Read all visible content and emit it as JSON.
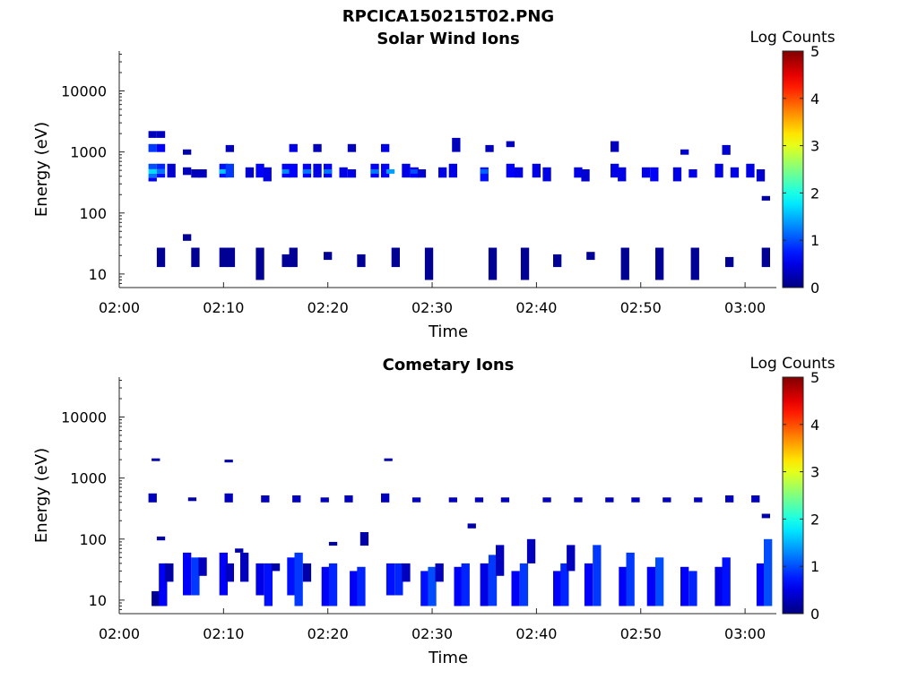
{
  "figure_title": "RPCICA150215T02.PNG",
  "chart_data": [
    {
      "type": "heatmap",
      "title": "Solar Wind Ions",
      "xlabel": "Time",
      "ylabel": "Energy (eV)",
      "x_ticks": [
        "02:00",
        "02:10",
        "02:20",
        "02:30",
        "02:40",
        "02:50",
        "03:00"
      ],
      "y_ticks": [
        "10",
        "100",
        "1000",
        "10000"
      ],
      "y_scale": "log",
      "ylim": [
        6,
        45000
      ],
      "xlim_minutes": [
        0,
        63
      ],
      "colorbar": {
        "label": "Log Counts",
        "ticks": [
          "0",
          "1",
          "2",
          "3",
          "4",
          "5"
        ],
        "range": [
          0,
          5
        ],
        "colormap": "jet"
      },
      "cells": [
        {
          "t": 3.2,
          "e_lo": 1700,
          "e_hi": 2200,
          "v": 0.3
        },
        {
          "t": 3.2,
          "e_lo": 1000,
          "e_hi": 1350,
          "v": 0.9
        },
        {
          "t": 3.2,
          "e_lo": 520,
          "e_hi": 640,
          "v": 1.0
        },
        {
          "t": 3.2,
          "e_lo": 440,
          "e_hi": 520,
          "v": 1.7
        },
        {
          "t": 3.2,
          "e_lo": 380,
          "e_hi": 440,
          "v": 1.2
        },
        {
          "t": 3.2,
          "e_lo": 330,
          "e_hi": 380,
          "v": 0.6
        },
        {
          "t": 4.0,
          "e_lo": 1700,
          "e_hi": 2200,
          "v": 0.3
        },
        {
          "t": 4.0,
          "e_lo": 1000,
          "e_hi": 1350,
          "v": 0.6
        },
        {
          "t": 4.0,
          "e_lo": 520,
          "e_hi": 640,
          "v": 0.8
        },
        {
          "t": 4.0,
          "e_lo": 440,
          "e_hi": 520,
          "v": 1.2
        },
        {
          "t": 4.0,
          "e_lo": 380,
          "e_hi": 440,
          "v": 0.7
        },
        {
          "t": 4.0,
          "e_lo": 13,
          "e_hi": 27,
          "v": 0.1
        },
        {
          "t": 5.0,
          "e_lo": 380,
          "e_hi": 640,
          "v": 0.4
        },
        {
          "t": 6.5,
          "e_lo": 900,
          "e_hi": 1100,
          "v": 0.2
        },
        {
          "t": 6.5,
          "e_lo": 420,
          "e_hi": 560,
          "v": 0.3
        },
        {
          "t": 6.5,
          "e_lo": 35,
          "e_hi": 45,
          "v": 0.1
        },
        {
          "t": 7.3,
          "e_lo": 380,
          "e_hi": 520,
          "v": 0.3
        },
        {
          "t": 7.3,
          "e_lo": 13,
          "e_hi": 27,
          "v": 0.1
        },
        {
          "t": 8.0,
          "e_lo": 380,
          "e_hi": 520,
          "v": 0.3
        },
        {
          "t": 10.0,
          "e_lo": 380,
          "e_hi": 640,
          "v": 0.7
        },
        {
          "t": 10.0,
          "e_lo": 440,
          "e_hi": 520,
          "v": 1.6
        },
        {
          "t": 10.6,
          "e_lo": 380,
          "e_hi": 640,
          "v": 0.9
        },
        {
          "t": 10.6,
          "e_lo": 1000,
          "e_hi": 1300,
          "v": 0.3
        },
        {
          "t": 10.0,
          "e_lo": 13,
          "e_hi": 27,
          "v": 0.1
        },
        {
          "t": 10.7,
          "e_lo": 13,
          "e_hi": 27,
          "v": 0.1
        },
        {
          "t": 12.5,
          "e_lo": 380,
          "e_hi": 560,
          "v": 0.4
        },
        {
          "t": 13.5,
          "e_lo": 380,
          "e_hi": 640,
          "v": 0.6
        },
        {
          "t": 14.2,
          "e_lo": 330,
          "e_hi": 560,
          "v": 0.5
        },
        {
          "t": 13.5,
          "e_lo": 8,
          "e_hi": 27,
          "v": 0.1
        },
        {
          "t": 16.0,
          "e_lo": 380,
          "e_hi": 640,
          "v": 0.6
        },
        {
          "t": 16.0,
          "e_lo": 440,
          "e_hi": 520,
          "v": 1.3
        },
        {
          "t": 16.7,
          "e_lo": 380,
          "e_hi": 640,
          "v": 0.6
        },
        {
          "t": 16.7,
          "e_lo": 1000,
          "e_hi": 1350,
          "v": 0.5
        },
        {
          "t": 16.0,
          "e_lo": 13,
          "e_hi": 21,
          "v": 0.1
        },
        {
          "t": 16.7,
          "e_lo": 13,
          "e_hi": 27,
          "v": 0.1
        },
        {
          "t": 18.0,
          "e_lo": 380,
          "e_hi": 640,
          "v": 0.6
        },
        {
          "t": 18.0,
          "e_lo": 440,
          "e_hi": 520,
          "v": 1.2
        },
        {
          "t": 19.0,
          "e_lo": 380,
          "e_hi": 640,
          "v": 0.5
        },
        {
          "t": 19.0,
          "e_lo": 1000,
          "e_hi": 1350,
          "v": 0.3
        },
        {
          "t": 20.0,
          "e_lo": 380,
          "e_hi": 640,
          "v": 0.6
        },
        {
          "t": 20.0,
          "e_lo": 440,
          "e_hi": 520,
          "v": 1.2
        },
        {
          "t": 20.0,
          "e_lo": 17,
          "e_hi": 23,
          "v": 0.1
        },
        {
          "t": 21.5,
          "e_lo": 380,
          "e_hi": 560,
          "v": 0.5
        },
        {
          "t": 22.3,
          "e_lo": 1000,
          "e_hi": 1350,
          "v": 0.3
        },
        {
          "t": 22.3,
          "e_lo": 380,
          "e_hi": 520,
          "v": 0.5
        },
        {
          "t": 23.2,
          "e_lo": 13,
          "e_hi": 21,
          "v": 0.1
        },
        {
          "t": 24.5,
          "e_lo": 380,
          "e_hi": 640,
          "v": 0.6
        },
        {
          "t": 24.5,
          "e_lo": 440,
          "e_hi": 520,
          "v": 1.2
        },
        {
          "t": 25.5,
          "e_lo": 380,
          "e_hi": 640,
          "v": 0.6
        },
        {
          "t": 25.5,
          "e_lo": 1000,
          "e_hi": 1350,
          "v": 0.5
        },
        {
          "t": 26.0,
          "e_lo": 440,
          "e_hi": 520,
          "v": 1.4
        },
        {
          "t": 26.5,
          "e_lo": 13,
          "e_hi": 27,
          "v": 0.1
        },
        {
          "t": 27.5,
          "e_lo": 380,
          "e_hi": 640,
          "v": 0.5
        },
        {
          "t": 28.3,
          "e_lo": 380,
          "e_hi": 560,
          "v": 0.6
        },
        {
          "t": 28.3,
          "e_lo": 440,
          "e_hi": 520,
          "v": 1.0
        },
        {
          "t": 29.0,
          "e_lo": 380,
          "e_hi": 520,
          "v": 0.4
        },
        {
          "t": 29.7,
          "e_lo": 8,
          "e_hi": 27,
          "v": 0.1
        },
        {
          "t": 31.0,
          "e_lo": 380,
          "e_hi": 560,
          "v": 0.5
        },
        {
          "t": 32.0,
          "e_lo": 380,
          "e_hi": 640,
          "v": 0.5
        },
        {
          "t": 32.3,
          "e_lo": 1000,
          "e_hi": 1700,
          "v": 0.3
        },
        {
          "t": 35.0,
          "e_lo": 330,
          "e_hi": 560,
          "v": 0.7
        },
        {
          "t": 35.0,
          "e_lo": 440,
          "e_hi": 520,
          "v": 1.1
        },
        {
          "t": 35.5,
          "e_lo": 1000,
          "e_hi": 1300,
          "v": 0.3
        },
        {
          "t": 35.8,
          "e_lo": 8,
          "e_hi": 27,
          "v": 0.1
        },
        {
          "t": 37.5,
          "e_lo": 380,
          "e_hi": 640,
          "v": 0.6
        },
        {
          "t": 37.5,
          "e_lo": 1200,
          "e_hi": 1500,
          "v": 0.3
        },
        {
          "t": 38.3,
          "e_lo": 380,
          "e_hi": 560,
          "v": 0.5
        },
        {
          "t": 38.9,
          "e_lo": 8,
          "e_hi": 27,
          "v": 0.1
        },
        {
          "t": 40.0,
          "e_lo": 380,
          "e_hi": 640,
          "v": 0.5
        },
        {
          "t": 41.0,
          "e_lo": 330,
          "e_hi": 560,
          "v": 0.5
        },
        {
          "t": 42.0,
          "e_lo": 13,
          "e_hi": 21,
          "v": 0.1
        },
        {
          "t": 44.0,
          "e_lo": 380,
          "e_hi": 560,
          "v": 0.5
        },
        {
          "t": 44.7,
          "e_lo": 330,
          "e_hi": 520,
          "v": 0.4
        },
        {
          "t": 45.2,
          "e_lo": 17,
          "e_hi": 23,
          "v": 0.1
        },
        {
          "t": 47.5,
          "e_lo": 380,
          "e_hi": 640,
          "v": 0.5
        },
        {
          "t": 47.5,
          "e_lo": 1000,
          "e_hi": 1500,
          "v": 0.3
        },
        {
          "t": 48.2,
          "e_lo": 330,
          "e_hi": 560,
          "v": 0.5
        },
        {
          "t": 48.5,
          "e_lo": 8,
          "e_hi": 27,
          "v": 0.1
        },
        {
          "t": 50.5,
          "e_lo": 380,
          "e_hi": 560,
          "v": 0.5
        },
        {
          "t": 51.3,
          "e_lo": 330,
          "e_hi": 560,
          "v": 0.6
        },
        {
          "t": 51.8,
          "e_lo": 8,
          "e_hi": 27,
          "v": 0.1
        },
        {
          "t": 53.5,
          "e_lo": 330,
          "e_hi": 560,
          "v": 0.5
        },
        {
          "t": 54.2,
          "e_lo": 900,
          "e_hi": 1100,
          "v": 0.4
        },
        {
          "t": 55.0,
          "e_lo": 380,
          "e_hi": 520,
          "v": 0.5
        },
        {
          "t": 55.2,
          "e_lo": 8,
          "e_hi": 27,
          "v": 0.1
        },
        {
          "t": 57.5,
          "e_lo": 380,
          "e_hi": 640,
          "v": 0.5
        },
        {
          "t": 58.2,
          "e_lo": 900,
          "e_hi": 1300,
          "v": 0.4
        },
        {
          "t": 59.0,
          "e_lo": 380,
          "e_hi": 560,
          "v": 0.5
        },
        {
          "t": 58.5,
          "e_lo": 13,
          "e_hi": 19,
          "v": 0.1
        },
        {
          "t": 60.5,
          "e_lo": 380,
          "e_hi": 640,
          "v": 0.5
        },
        {
          "t": 61.5,
          "e_lo": 330,
          "e_hi": 520,
          "v": 0.4
        },
        {
          "t": 62.0,
          "e_lo": 160,
          "e_hi": 190,
          "v": 0.2
        },
        {
          "t": 62.0,
          "e_lo": 13,
          "e_hi": 27,
          "v": 0.1
        }
      ]
    },
    {
      "type": "heatmap",
      "title": "Cometary Ions",
      "xlabel": "Time",
      "ylabel": "Energy (eV)",
      "x_ticks": [
        "02:00",
        "02:10",
        "02:20",
        "02:30",
        "02:40",
        "02:50",
        "03:00"
      ],
      "y_ticks": [
        "10",
        "100",
        "1000",
        "10000"
      ],
      "y_scale": "log",
      "ylim": [
        6,
        45000
      ],
      "xlim_minutes": [
        0,
        63
      ],
      "colorbar": {
        "label": "Log Counts",
        "ticks": [
          "0",
          "1",
          "2",
          "3",
          "4",
          "5"
        ],
        "range": [
          0,
          5
        ],
        "colormap": "jet"
      },
      "cells": [
        {
          "t": 3.2,
          "e_lo": 400,
          "e_hi": 560,
          "v": 0.3
        },
        {
          "t": 3.5,
          "e_lo": 1900,
          "e_hi": 2100,
          "v": 0.2
        },
        {
          "t": 4.0,
          "e_lo": 95,
          "e_hi": 110,
          "v": 0.2
        },
        {
          "t": 3.5,
          "e_lo": 8,
          "e_hi": 14,
          "v": 0.1
        },
        {
          "t": 4.2,
          "e_lo": 8,
          "e_hi": 40,
          "v": 0.6
        },
        {
          "t": 4.8,
          "e_lo": 20,
          "e_hi": 40,
          "v": 0.2
        },
        {
          "t": 7.0,
          "e_lo": 420,
          "e_hi": 480,
          "v": 0.2
        },
        {
          "t": 6.5,
          "e_lo": 12,
          "e_hi": 60,
          "v": 0.6
        },
        {
          "t": 7.3,
          "e_lo": 12,
          "e_hi": 50,
          "v": 0.9
        },
        {
          "t": 8.0,
          "e_lo": 25,
          "e_hi": 50,
          "v": 0.3
        },
        {
          "t": 10.5,
          "e_lo": 400,
          "e_hi": 560,
          "v": 0.3
        },
        {
          "t": 10.5,
          "e_lo": 1800,
          "e_hi": 2000,
          "v": 0.2
        },
        {
          "t": 10.0,
          "e_lo": 12,
          "e_hi": 60,
          "v": 0.6
        },
        {
          "t": 10.6,
          "e_lo": 20,
          "e_hi": 40,
          "v": 0.3
        },
        {
          "t": 11.5,
          "e_lo": 60,
          "e_hi": 70,
          "v": 0.2
        },
        {
          "t": 12.0,
          "e_lo": 20,
          "e_hi": 60,
          "v": 0.3
        },
        {
          "t": 14.0,
          "e_lo": 400,
          "e_hi": 520,
          "v": 0.3
        },
        {
          "t": 13.5,
          "e_lo": 12,
          "e_hi": 40,
          "v": 0.5
        },
        {
          "t": 14.3,
          "e_lo": 8,
          "e_hi": 40,
          "v": 0.7
        },
        {
          "t": 15.0,
          "e_lo": 30,
          "e_hi": 40,
          "v": 0.2
        },
        {
          "t": 17.0,
          "e_lo": 400,
          "e_hi": 520,
          "v": 0.3
        },
        {
          "t": 16.5,
          "e_lo": 12,
          "e_hi": 50,
          "v": 0.7
        },
        {
          "t": 17.2,
          "e_lo": 8,
          "e_hi": 60,
          "v": 0.9
        },
        {
          "t": 18.0,
          "e_lo": 20,
          "e_hi": 40,
          "v": 0.2
        },
        {
          "t": 19.7,
          "e_lo": 400,
          "e_hi": 480,
          "v": 0.3
        },
        {
          "t": 19.8,
          "e_lo": 8,
          "e_hi": 35,
          "v": 0.6
        },
        {
          "t": 20.5,
          "e_lo": 8,
          "e_hi": 40,
          "v": 0.8
        },
        {
          "t": 20.5,
          "e_lo": 78,
          "e_hi": 90,
          "v": 0.2
        },
        {
          "t": 22.0,
          "e_lo": 400,
          "e_hi": 520,
          "v": 0.3
        },
        {
          "t": 22.5,
          "e_lo": 8,
          "e_hi": 30,
          "v": 0.6
        },
        {
          "t": 23.2,
          "e_lo": 8,
          "e_hi": 35,
          "v": 0.8
        },
        {
          "t": 23.5,
          "e_lo": 78,
          "e_hi": 130,
          "v": 0.2
        },
        {
          "t": 25.5,
          "e_lo": 400,
          "e_hi": 560,
          "v": 0.3
        },
        {
          "t": 25.8,
          "e_lo": 1900,
          "e_hi": 2100,
          "v": 0.2
        },
        {
          "t": 26.0,
          "e_lo": 12,
          "e_hi": 40,
          "v": 0.7
        },
        {
          "t": 26.8,
          "e_lo": 12,
          "e_hi": 40,
          "v": 0.8
        },
        {
          "t": 27.5,
          "e_lo": 20,
          "e_hi": 40,
          "v": 0.3
        },
        {
          "t": 28.5,
          "e_lo": 400,
          "e_hi": 480,
          "v": 0.3
        },
        {
          "t": 29.3,
          "e_lo": 8,
          "e_hi": 30,
          "v": 0.7
        },
        {
          "t": 30.0,
          "e_lo": 8,
          "e_hi": 35,
          "v": 1.0
        },
        {
          "t": 30.7,
          "e_lo": 20,
          "e_hi": 40,
          "v": 0.3
        },
        {
          "t": 32.0,
          "e_lo": 400,
          "e_hi": 480,
          "v": 0.3
        },
        {
          "t": 32.5,
          "e_lo": 8,
          "e_hi": 35,
          "v": 0.6
        },
        {
          "t": 33.2,
          "e_lo": 8,
          "e_hi": 40,
          "v": 0.8
        },
        {
          "t": 33.8,
          "e_lo": 150,
          "e_hi": 180,
          "v": 0.2
        },
        {
          "t": 34.5,
          "e_lo": 400,
          "e_hi": 480,
          "v": 0.3
        },
        {
          "t": 35.0,
          "e_lo": 8,
          "e_hi": 40,
          "v": 0.5
        },
        {
          "t": 35.8,
          "e_lo": 8,
          "e_hi": 55,
          "v": 0.9
        },
        {
          "t": 36.5,
          "e_lo": 25,
          "e_hi": 80,
          "v": 0.3
        },
        {
          "t": 37.0,
          "e_lo": 400,
          "e_hi": 480,
          "v": 0.3
        },
        {
          "t": 38.0,
          "e_lo": 8,
          "e_hi": 30,
          "v": 0.6
        },
        {
          "t": 38.8,
          "e_lo": 8,
          "e_hi": 40,
          "v": 0.9
        },
        {
          "t": 39.5,
          "e_lo": 40,
          "e_hi": 100,
          "v": 0.3
        },
        {
          "t": 41.0,
          "e_lo": 400,
          "e_hi": 480,
          "v": 0.3
        },
        {
          "t": 42.0,
          "e_lo": 8,
          "e_hi": 30,
          "v": 0.6
        },
        {
          "t": 42.7,
          "e_lo": 8,
          "e_hi": 40,
          "v": 0.8
        },
        {
          "t": 43.3,
          "e_lo": 30,
          "e_hi": 80,
          "v": 0.3
        },
        {
          "t": 44.0,
          "e_lo": 400,
          "e_hi": 480,
          "v": 0.3
        },
        {
          "t": 45.0,
          "e_lo": 8,
          "e_hi": 40,
          "v": 0.6
        },
        {
          "t": 45.8,
          "e_lo": 8,
          "e_hi": 80,
          "v": 0.9
        },
        {
          "t": 47.0,
          "e_lo": 400,
          "e_hi": 480,
          "v": 0.3
        },
        {
          "t": 48.3,
          "e_lo": 8,
          "e_hi": 35,
          "v": 0.6
        },
        {
          "t": 49.0,
          "e_lo": 8,
          "e_hi": 60,
          "v": 0.9
        },
        {
          "t": 49.5,
          "e_lo": 400,
          "e_hi": 480,
          "v": 0.3
        },
        {
          "t": 51.0,
          "e_lo": 8,
          "e_hi": 35,
          "v": 0.6
        },
        {
          "t": 51.8,
          "e_lo": 8,
          "e_hi": 50,
          "v": 1.0
        },
        {
          "t": 52.5,
          "e_lo": 400,
          "e_hi": 480,
          "v": 0.3
        },
        {
          "t": 54.2,
          "e_lo": 8,
          "e_hi": 35,
          "v": 0.6
        },
        {
          "t": 55.0,
          "e_lo": 8,
          "e_hi": 30,
          "v": 0.8
        },
        {
          "t": 55.5,
          "e_lo": 400,
          "e_hi": 480,
          "v": 0.3
        },
        {
          "t": 57.5,
          "e_lo": 8,
          "e_hi": 35,
          "v": 0.5
        },
        {
          "t": 58.2,
          "e_lo": 8,
          "e_hi": 50,
          "v": 0.7
        },
        {
          "t": 58.5,
          "e_lo": 400,
          "e_hi": 520,
          "v": 0.3
        },
        {
          "t": 61.0,
          "e_lo": 400,
          "e_hi": 520,
          "v": 0.3
        },
        {
          "t": 61.5,
          "e_lo": 8,
          "e_hi": 40,
          "v": 0.6
        },
        {
          "t": 62.2,
          "e_lo": 8,
          "e_hi": 100,
          "v": 1.0
        },
        {
          "t": 62.0,
          "e_lo": 220,
          "e_hi": 260,
          "v": 0.2
        }
      ]
    }
  ]
}
